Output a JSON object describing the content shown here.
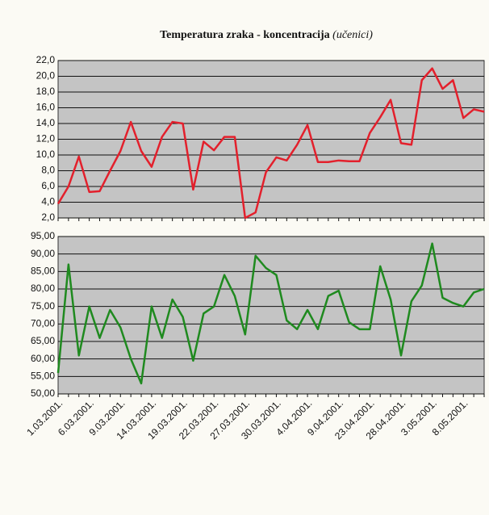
{
  "chart_data": [
    {
      "type": "line",
      "title": "Temperatura zraka - koncentracija",
      "title_note": "(učenici)",
      "series": [
        {
          "name": "Temperatura zraka",
          "color": "#e3202c",
          "values": [
            3.8,
            6,
            9.8,
            5.3,
            5.4,
            8,
            10.5,
            14.2,
            10.5,
            8.5,
            12.3,
            14.2,
            14,
            5.6,
            11.7,
            10.6,
            12.3,
            12.3,
            2.0,
            2.7,
            7.8,
            9.7,
            9.3,
            11.3,
            13.8,
            9.1,
            9.1,
            9.3,
            9.2,
            9.2,
            12.8,
            14.8,
            17,
            11.5,
            11.3,
            19.5,
            21,
            18.4,
            19.5,
            14.7,
            15.8,
            15.5
          ]
        }
      ],
      "ylim": [
        2,
        22
      ],
      "yticks": [
        {
          "value": 2,
          "label": "2,0"
        },
        {
          "value": 4,
          "label": "4,0"
        },
        {
          "value": 6,
          "label": "6,0"
        },
        {
          "value": 8,
          "label": "8,0"
        },
        {
          "value": 10,
          "label": "10,0"
        },
        {
          "value": 12,
          "label": "12,0"
        },
        {
          "value": 14,
          "label": "14,0"
        },
        {
          "value": 16,
          "label": "16,0"
        },
        {
          "value": 18,
          "label": "18,0"
        },
        {
          "value": 20,
          "label": "20,0"
        },
        {
          "value": 22,
          "label": "22,0"
        }
      ],
      "grid": true
    },
    {
      "type": "line",
      "categories": [
        "1.03.2001.",
        null,
        null,
        "6.03.2001.",
        null,
        null,
        "9.03.2001.",
        null,
        null,
        "14.03.2001.",
        null,
        null,
        "19.03.2001.",
        null,
        null,
        "22.03.2001.",
        null,
        null,
        "27.03.2001.",
        null,
        null,
        "30.03.2001.",
        null,
        null,
        "4.04.2001.",
        null,
        null,
        "9.04.2001.",
        null,
        null,
        "23.04.2001.",
        null,
        null,
        "28.04.2001.",
        null,
        null,
        "3.05.2001.",
        null,
        null,
        "8.05.2001.",
        null,
        null
      ],
      "series": [
        {
          "name": "Koncentracija",
          "color": "#1f8a1f",
          "values": [
            56,
            87,
            61,
            75,
            66,
            74,
            69,
            60,
            53,
            75,
            66,
            77,
            72,
            59.5,
            73,
            75,
            84,
            78,
            67,
            89.5,
            86,
            84,
            71,
            68.5,
            74,
            68.5,
            78,
            79.5,
            70.5,
            68.5,
            68.5,
            86.5,
            77,
            61,
            76.5,
            81,
            93,
            77.5,
            76,
            75,
            79,
            80
          ]
        }
      ],
      "ylim": [
        50,
        95
      ],
      "yticks": [
        {
          "value": 50,
          "label": "50,00"
        },
        {
          "value": 55,
          "label": "55,00"
        },
        {
          "value": 60,
          "label": "60,00"
        },
        {
          "value": 65,
          "label": "65,00"
        },
        {
          "value": 70,
          "label": "70,00"
        },
        {
          "value": 75,
          "label": "75,00"
        },
        {
          "value": 80,
          "label": "80,00"
        },
        {
          "value": 85,
          "label": "85,00"
        },
        {
          "value": 90,
          "label": "90,00"
        },
        {
          "value": 95,
          "label": "95,00"
        }
      ],
      "grid": true
    }
  ]
}
